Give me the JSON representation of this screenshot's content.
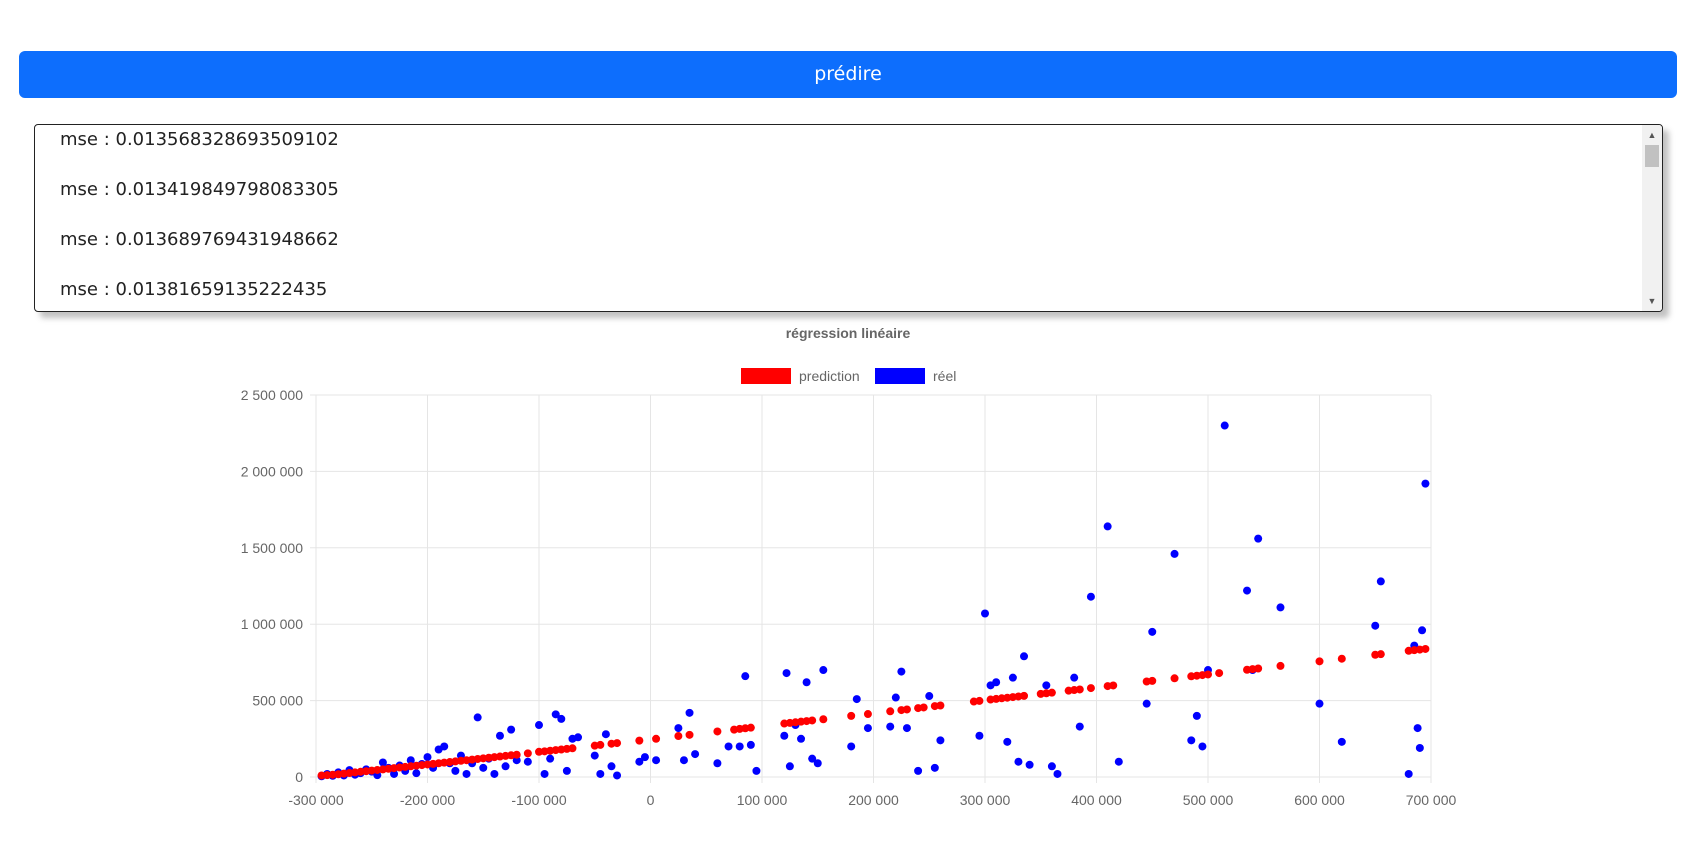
{
  "predict_button": {
    "label": "prédire"
  },
  "mse_list": [
    "mse : 0.013568328693509102",
    "mse : 0.013419849798083305",
    "mse : 0.013689769431948662",
    "mse : 0.01381659135222435"
  ],
  "chart_data": {
    "type": "scatter",
    "title": "régression linéaire",
    "xlabel": "",
    "ylabel": "",
    "xlim": [
      -300000,
      700000
    ],
    "ylim": [
      0,
      2500000
    ],
    "x_ticks": [
      -300000,
      -200000,
      -100000,
      0,
      100000,
      200000,
      300000,
      400000,
      500000,
      600000,
      700000
    ],
    "y_ticks": [
      0,
      500000,
      1000000,
      1500000,
      2000000,
      2500000
    ],
    "x_tick_labels": [
      "-300 000",
      "-200 000",
      "-100 000",
      "0",
      "100 000",
      "200 000",
      "300 000",
      "400 000",
      "500 000",
      "600 000",
      "700 000"
    ],
    "y_tick_labels": [
      "0",
      "500 000",
      "1 000 000",
      "1 500 000",
      "2 000 000",
      "2 500 000"
    ],
    "grid": true,
    "legend_position": "top",
    "series": [
      {
        "name": "prediction",
        "color": "#ff0000",
        "points": [
          [
            -295000,
            10000
          ],
          [
            -290000,
            12000
          ],
          [
            -285000,
            15000
          ],
          [
            -280000,
            18000
          ],
          [
            -275000,
            22000
          ],
          [
            -270000,
            26000
          ],
          [
            -265000,
            30000
          ],
          [
            -260000,
            34000
          ],
          [
            -255000,
            38000
          ],
          [
            -250000,
            42000
          ],
          [
            -245000,
            46000
          ],
          [
            -240000,
            50000
          ],
          [
            -235000,
            54000
          ],
          [
            -230000,
            58000
          ],
          [
            -225000,
            62000
          ],
          [
            -220000,
            66000
          ],
          [
            -215000,
            70000
          ],
          [
            -210000,
            74000
          ],
          [
            -205000,
            78000
          ],
          [
            -200000,
            82000
          ],
          [
            -195000,
            86000
          ],
          [
            -190000,
            90000
          ],
          [
            -185000,
            94000
          ],
          [
            -180000,
            98000
          ],
          [
            -175000,
            102000
          ],
          [
            -170000,
            106000
          ],
          [
            -165000,
            110000
          ],
          [
            -160000,
            114000
          ],
          [
            -155000,
            118000
          ],
          [
            -150000,
            122000
          ],
          [
            -145000,
            126000
          ],
          [
            -140000,
            130000
          ],
          [
            -135000,
            134000
          ],
          [
            -130000,
            138000
          ],
          [
            -125000,
            142000
          ],
          [
            -120000,
            146000
          ],
          [
            -110000,
            155000
          ],
          [
            -100000,
            165000
          ],
          [
            -95000,
            168000
          ],
          [
            -90000,
            172000
          ],
          [
            -85000,
            176000
          ],
          [
            -80000,
            180000
          ],
          [
            -75000,
            184000
          ],
          [
            -70000,
            188000
          ],
          [
            -50000,
            205000
          ],
          [
            -45000,
            210000
          ],
          [
            -35000,
            218000
          ],
          [
            -30000,
            222000
          ],
          [
            -10000,
            238000
          ],
          [
            5000,
            250000
          ],
          [
            25000,
            268000
          ],
          [
            35000,
            276000
          ],
          [
            60000,
            298000
          ],
          [
            75000,
            310000
          ],
          [
            80000,
            315000
          ],
          [
            85000,
            319000
          ],
          [
            90000,
            323000
          ],
          [
            120000,
            350000
          ],
          [
            125000,
            354000
          ],
          [
            130000,
            358000
          ],
          [
            135000,
            362000
          ],
          [
            140000,
            366000
          ],
          [
            145000,
            370000
          ],
          [
            155000,
            378000
          ],
          [
            180000,
            400000
          ],
          [
            195000,
            412000
          ],
          [
            215000,
            430000
          ],
          [
            225000,
            438000
          ],
          [
            230000,
            442000
          ],
          [
            240000,
            451000
          ],
          [
            245000,
            455000
          ],
          [
            255000,
            464000
          ],
          [
            260000,
            468000
          ],
          [
            290000,
            494000
          ],
          [
            295000,
            498000
          ],
          [
            305000,
            507000
          ],
          [
            310000,
            511000
          ],
          [
            315000,
            515000
          ],
          [
            320000,
            519000
          ],
          [
            325000,
            523000
          ],
          [
            330000,
            527000
          ],
          [
            335000,
            531000
          ],
          [
            350000,
            544000
          ],
          [
            355000,
            548000
          ],
          [
            360000,
            552000
          ],
          [
            375000,
            565000
          ],
          [
            380000,
            569000
          ],
          [
            385000,
            573000
          ],
          [
            395000,
            582000
          ],
          [
            410000,
            595000
          ],
          [
            415000,
            599000
          ],
          [
            445000,
            625000
          ],
          [
            450000,
            629000
          ],
          [
            470000,
            646000
          ],
          [
            485000,
            659000
          ],
          [
            490000,
            663000
          ],
          [
            495000,
            667000
          ],
          [
            500000,
            671000
          ],
          [
            510000,
            680000
          ],
          [
            535000,
            702000
          ],
          [
            540000,
            706000
          ],
          [
            545000,
            710000
          ],
          [
            565000,
            727000
          ],
          [
            600000,
            757000
          ],
          [
            620000,
            774000
          ],
          [
            650000,
            800000
          ],
          [
            655000,
            804000
          ],
          [
            680000,
            826000
          ],
          [
            685000,
            830000
          ],
          [
            690000,
            834000
          ],
          [
            695000,
            838000
          ]
        ]
      },
      {
        "name": "réel",
        "color": "#0000ff",
        "points": [
          [
            -295000,
            5000
          ],
          [
            -290000,
            20000
          ],
          [
            -285000,
            8000
          ],
          [
            -280000,
            30000
          ],
          [
            -275000,
            10000
          ],
          [
            -270000,
            45000
          ],
          [
            -265000,
            15000
          ],
          [
            -260000,
            25000
          ],
          [
            -255000,
            50000
          ],
          [
            -250000,
            35000
          ],
          [
            -245000,
            12000
          ],
          [
            -240000,
            95000
          ],
          [
            -235000,
            60000
          ],
          [
            -230000,
            20000
          ],
          [
            -225000,
            75000
          ],
          [
            -220000,
            40000
          ],
          [
            -215000,
            110000
          ],
          [
            -210000,
            25000
          ],
          [
            -205000,
            85000
          ],
          [
            -200000,
            130000
          ],
          [
            -195000,
            60000
          ],
          [
            -190000,
            180000
          ],
          [
            -185000,
            200000
          ],
          [
            -180000,
            90000
          ],
          [
            -175000,
            40000
          ],
          [
            -170000,
            140000
          ],
          [
            -165000,
            20000
          ],
          [
            -160000,
            90000
          ],
          [
            -155000,
            390000
          ],
          [
            -150000,
            60000
          ],
          [
            -145000,
            120000
          ],
          [
            -140000,
            20000
          ],
          [
            -135000,
            270000
          ],
          [
            -130000,
            70000
          ],
          [
            -125000,
            310000
          ],
          [
            -120000,
            110000
          ],
          [
            -110000,
            100000
          ],
          [
            -100000,
            340000
          ],
          [
            -95000,
            20000
          ],
          [
            -90000,
            120000
          ],
          [
            -85000,
            410000
          ],
          [
            -80000,
            380000
          ],
          [
            -75000,
            40000
          ],
          [
            -70000,
            250000
          ],
          [
            -65000,
            260000
          ],
          [
            -50000,
            140000
          ],
          [
            -45000,
            20000
          ],
          [
            -40000,
            280000
          ],
          [
            -35000,
            70000
          ],
          [
            -30000,
            10000
          ],
          [
            -10000,
            100000
          ],
          [
            -5000,
            130000
          ],
          [
            5000,
            110000
          ],
          [
            25000,
            320000
          ],
          [
            30000,
            110000
          ],
          [
            35000,
            420000
          ],
          [
            40000,
            150000
          ],
          [
            60000,
            90000
          ],
          [
            70000,
            200000
          ],
          [
            80000,
            200000
          ],
          [
            85000,
            660000
          ],
          [
            90000,
            210000
          ],
          [
            95000,
            40000
          ],
          [
            120000,
            270000
          ],
          [
            122000,
            680000
          ],
          [
            125000,
            70000
          ],
          [
            130000,
            340000
          ],
          [
            135000,
            250000
          ],
          [
            140000,
            620000
          ],
          [
            145000,
            120000
          ],
          [
            150000,
            90000
          ],
          [
            155000,
            700000
          ],
          [
            180000,
            200000
          ],
          [
            185000,
            510000
          ],
          [
            195000,
            320000
          ],
          [
            215000,
            330000
          ],
          [
            220000,
            520000
          ],
          [
            225000,
            690000
          ],
          [
            230000,
            320000
          ],
          [
            240000,
            40000
          ],
          [
            250000,
            530000
          ],
          [
            255000,
            60000
          ],
          [
            260000,
            240000
          ],
          [
            295000,
            270000
          ],
          [
            300000,
            1070000
          ],
          [
            305000,
            600000
          ],
          [
            310000,
            620000
          ],
          [
            320000,
            230000
          ],
          [
            325000,
            650000
          ],
          [
            330000,
            100000
          ],
          [
            335000,
            790000
          ],
          [
            340000,
            80000
          ],
          [
            355000,
            600000
          ],
          [
            360000,
            70000
          ],
          [
            365000,
            20000
          ],
          [
            380000,
            650000
          ],
          [
            385000,
            330000
          ],
          [
            395000,
            1180000
          ],
          [
            410000,
            1640000
          ],
          [
            420000,
            100000
          ],
          [
            445000,
            480000
          ],
          [
            450000,
            950000
          ],
          [
            470000,
            1460000
          ],
          [
            485000,
            240000
          ],
          [
            490000,
            400000
          ],
          [
            495000,
            200000
          ],
          [
            500000,
            700000
          ],
          [
            515000,
            2300000
          ],
          [
            535000,
            1220000
          ],
          [
            540000,
            700000
          ],
          [
            545000,
            1560000
          ],
          [
            565000,
            1110000
          ],
          [
            600000,
            480000
          ],
          [
            620000,
            230000
          ],
          [
            650000,
            990000
          ],
          [
            655000,
            1280000
          ],
          [
            680000,
            20000
          ],
          [
            685000,
            860000
          ],
          [
            688000,
            320000
          ],
          [
            690000,
            190000
          ],
          [
            692000,
            960000
          ],
          [
            695000,
            1920000
          ]
        ]
      }
    ]
  }
}
